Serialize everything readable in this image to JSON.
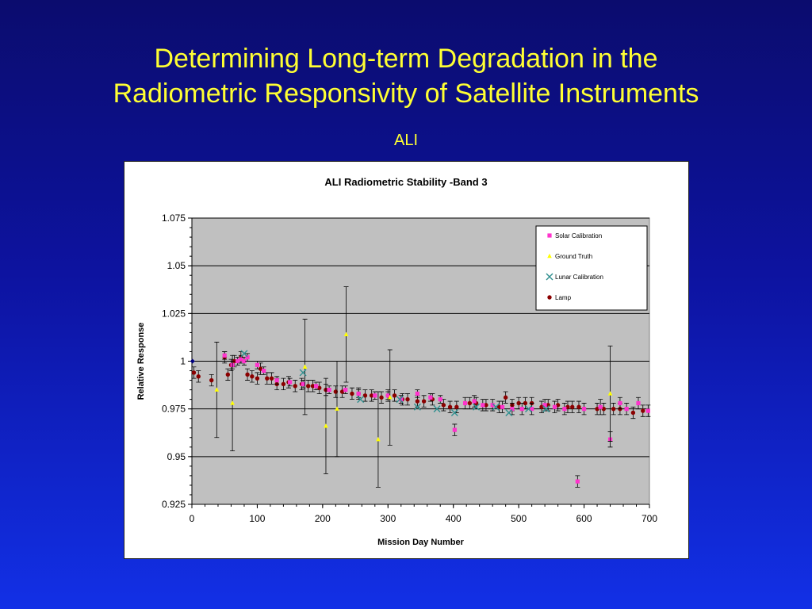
{
  "slide": {
    "title_line1": "Determining Long-term Degradation in the",
    "title_line2": "Radiometric Responsivity of Satellite Instruments",
    "subtitle": "ALI"
  },
  "colors": {
    "background_top": "#0b0c6e",
    "background_bottom": "#1230e6",
    "title_text": "#ffff33",
    "plot_area": "#c0c0c0",
    "solar": "#ff33cc",
    "ground": "#ffff00",
    "lunar": "#2f8f8f",
    "lamp": "#8b0000",
    "first_point": "#000080"
  },
  "chart_data": {
    "type": "scatter",
    "title": "ALI Radiometric Stability -Band 3",
    "xlabel": "Mission Day Number",
    "ylabel": "Relative Response",
    "xlim": [
      0,
      700
    ],
    "ylim": [
      0.925,
      1.075
    ],
    "x_ticks": [
      "0",
      "100",
      "200",
      "300",
      "400",
      "500",
      "600",
      "700"
    ],
    "y_ticks": [
      "0.925",
      "0.95",
      "0.975",
      "1",
      "1.025",
      "1.05",
      "1.075"
    ],
    "grid": "horizontal",
    "legend_position": "top-right",
    "series": [
      {
        "name": "Solar Calibration",
        "marker": "square",
        "color": "#ff33cc",
        "points": [
          [
            50,
            1.003
          ],
          [
            62,
            0.998
          ],
          [
            70,
            1.0
          ],
          [
            75,
            1.001
          ],
          [
            80,
            1.0
          ],
          [
            85,
            1.002
          ],
          [
            100,
            0.998
          ],
          [
            110,
            0.995
          ],
          [
            130,
            0.99
          ],
          [
            150,
            0.989
          ],
          [
            170,
            0.988
          ],
          [
            190,
            0.987
          ],
          [
            210,
            0.985
          ],
          [
            235,
            0.985
          ],
          [
            255,
            0.983
          ],
          [
            280,
            0.982
          ],
          [
            300,
            0.982
          ],
          [
            320,
            0.98
          ],
          [
            345,
            0.983
          ],
          [
            365,
            0.981
          ],
          [
            380,
            0.98
          ],
          [
            402,
            0.964
          ],
          [
            418,
            0.978
          ],
          [
            432,
            0.979
          ],
          [
            445,
            0.977
          ],
          [
            460,
            0.977
          ],
          [
            475,
            0.976
          ],
          [
            490,
            0.975
          ],
          [
            505,
            0.975
          ],
          [
            520,
            0.975
          ],
          [
            540,
            0.977
          ],
          [
            555,
            0.976
          ],
          [
            570,
            0.975
          ],
          [
            590,
            0.937
          ],
          [
            600,
            0.975
          ],
          [
            625,
            0.976
          ],
          [
            640,
            0.959
          ],
          [
            655,
            0.978
          ],
          [
            665,
            0.975
          ],
          [
            683,
            0.978
          ],
          [
            698,
            0.974
          ]
        ],
        "errors": [
          0.002,
          0.002,
          0.002,
          0.002,
          0.002,
          0.002,
          0.002,
          0.002,
          0.002,
          0.002,
          0.002,
          0.002,
          0.002,
          0.002,
          0.002,
          0.002,
          0.002,
          0.002,
          0.002,
          0.002,
          0.002,
          0.003,
          0.003,
          0.003,
          0.003,
          0.003,
          0.003,
          0.003,
          0.003,
          0.003,
          0.003,
          0.003,
          0.003,
          0.003,
          0.003,
          0.004,
          0.004,
          0.003,
          0.003,
          0.003,
          0.003
        ]
      },
      {
        "name": "Ground Truth",
        "marker": "triangle",
        "color": "#ffff00",
        "points": [
          [
            38,
            0.985
          ],
          [
            62,
            0.978
          ],
          [
            173,
            0.997
          ],
          [
            205,
            0.966
          ],
          [
            222,
            0.975
          ],
          [
            236,
            1.014
          ],
          [
            285,
            0.959
          ],
          [
            303,
            0.981
          ],
          [
            640,
            0.983
          ]
        ],
        "errors": [
          0.025,
          0.025,
          0.025,
          0.025,
          0.025,
          0.025,
          0.025,
          0.025,
          0.025
        ]
      },
      {
        "name": "Lunar Calibration",
        "marker": "x",
        "color": "#2f8f8f",
        "points": [
          [
            80,
            1.004
          ],
          [
            170,
            0.994
          ],
          [
            258,
            0.98
          ],
          [
            318,
            0.98
          ],
          [
            345,
            0.976
          ],
          [
            375,
            0.975
          ],
          [
            402,
            0.973
          ],
          [
            435,
            0.976
          ],
          [
            465,
            0.976
          ],
          [
            485,
            0.973
          ],
          [
            515,
            0.975
          ],
          [
            542,
            0.975
          ]
        ],
        "errors": [
          0,
          0,
          0,
          0,
          0,
          0,
          0,
          0,
          0,
          0,
          0,
          0
        ]
      },
      {
        "name": "Lamp",
        "marker": "circle",
        "color": "#8b0000",
        "points": [
          [
            3,
            0.994
          ],
          [
            10,
            0.992
          ],
          [
            30,
            0.99
          ],
          [
            50,
            1.002
          ],
          [
            55,
            0.993
          ],
          [
            60,
            0.998
          ],
          [
            65,
            1.0
          ],
          [
            75,
            1.002
          ],
          [
            85,
            0.993
          ],
          [
            92,
            0.992
          ],
          [
            100,
            0.991
          ],
          [
            105,
            0.996
          ],
          [
            115,
            0.991
          ],
          [
            122,
            0.991
          ],
          [
            130,
            0.988
          ],
          [
            140,
            0.988
          ],
          [
            148,
            0.989
          ],
          [
            158,
            0.987
          ],
          [
            168,
            0.988
          ],
          [
            178,
            0.987
          ],
          [
            185,
            0.987
          ],
          [
            195,
            0.986
          ],
          [
            205,
            0.985
          ],
          [
            220,
            0.984
          ],
          [
            230,
            0.984
          ],
          [
            245,
            0.983
          ],
          [
            255,
            0.983
          ],
          [
            265,
            0.982
          ],
          [
            275,
            0.982
          ],
          [
            290,
            0.981
          ],
          [
            300,
            0.982
          ],
          [
            310,
            0.982
          ],
          [
            322,
            0.98
          ],
          [
            330,
            0.98
          ],
          [
            345,
            0.979
          ],
          [
            355,
            0.979
          ],
          [
            368,
            0.98
          ],
          [
            385,
            0.977
          ],
          [
            395,
            0.976
          ],
          [
            405,
            0.976
          ],
          [
            425,
            0.978
          ],
          [
            435,
            0.978
          ],
          [
            450,
            0.977
          ],
          [
            470,
            0.976
          ],
          [
            480,
            0.981
          ],
          [
            490,
            0.977
          ],
          [
            500,
            0.978
          ],
          [
            510,
            0.978
          ],
          [
            520,
            0.978
          ],
          [
            535,
            0.976
          ],
          [
            545,
            0.977
          ],
          [
            560,
            0.977
          ],
          [
            575,
            0.976
          ],
          [
            582,
            0.976
          ],
          [
            592,
            0.976
          ],
          [
            620,
            0.975
          ],
          [
            630,
            0.975
          ],
          [
            645,
            0.975
          ],
          [
            655,
            0.975
          ],
          [
            675,
            0.973
          ],
          [
            690,
            0.974
          ]
        ],
        "errors": [
          0.003,
          0.003,
          0.003,
          0.003,
          0.003,
          0.003,
          0.003,
          0.003,
          0.003,
          0.003,
          0.003,
          0.003,
          0.003,
          0.003,
          0.003,
          0.003,
          0.003,
          0.003,
          0.003,
          0.003,
          0.003,
          0.003,
          0.003,
          0.003,
          0.003,
          0.003,
          0.003,
          0.003,
          0.003,
          0.003,
          0.003,
          0.003,
          0.003,
          0.003,
          0.003,
          0.003,
          0.003,
          0.003,
          0.003,
          0.003,
          0.003,
          0.003,
          0.003,
          0.003,
          0.003,
          0.003,
          0.003,
          0.003,
          0.003,
          0.003,
          0.003,
          0.003,
          0.003,
          0.003,
          0.003,
          0.003,
          0.003,
          0.003,
          0.003,
          0.003,
          0.003
        ]
      },
      {
        "name": "",
        "marker": "diamond",
        "color": "#000080",
        "points": [
          [
            1,
            1.0
          ]
        ],
        "errors": [
          0
        ]
      }
    ]
  }
}
